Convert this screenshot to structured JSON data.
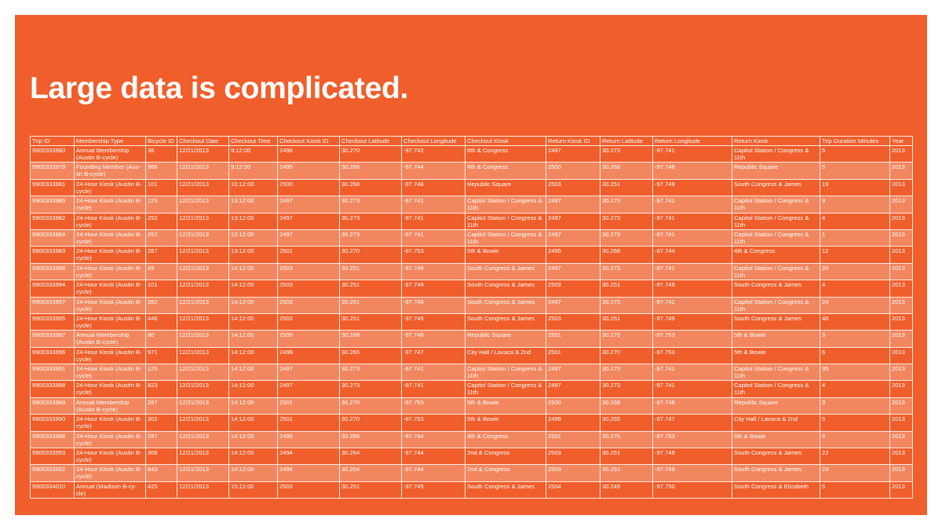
{
  "title": "Large data is complicated.",
  "table": {
    "headers": [
      "Trip ID",
      "Membership Type",
      "Bicycle ID",
      "Checkout Date",
      "Checkout Time",
      "Checkout Kiosk ID",
      "Checkout Latitude",
      "Checkout Longitude",
      "Checkout Kiosk",
      "Return Kiosk ID",
      "Return Latitude",
      "Return Longitude",
      "Return Kiosk",
      "Trip Duration Minutes",
      "Year"
    ],
    "rows": [
      [
        "9900333980",
        "Annual Membership (Austin B-cycle)",
        "36",
        "12/21/2013",
        "9:12:00",
        "2496",
        "30.270",
        "-97.742",
        "8th & Congress",
        "2497",
        "30.273",
        "-97.741",
        "Capitol Station / Congress & 11th",
        "5",
        "2013"
      ],
      [
        "9900333979",
        "Founding Member (Aus-tin B-cycle)",
        "966",
        "12/21/2013",
        "9:12:00",
        "2495",
        "30.266",
        "-97.744",
        "4th & Congress",
        "2500",
        "30.268",
        "-97.748",
        "Republic Square",
        "5",
        "2013"
      ],
      [
        "9900333981",
        "24-Hour Kiosk (Austin B-cycle)",
        "101",
        "12/21/2013",
        "10:12:00",
        "2500",
        "30.268",
        "-97.748",
        "Republic Square",
        "2503",
        "30.251",
        "-97.749",
        "South Congress & James",
        "19",
        "2013"
      ],
      [
        "9900333985",
        "24-Hour Kiosk (Austin B-cycle)",
        "125",
        "12/21/2013",
        "13:12:00",
        "2497",
        "30.273",
        "-97.741",
        "Capitol Station / Congress & 11th",
        "2497",
        "30.273",
        "-97.741",
        "Capitol Station / Congress & 11th",
        "9",
        "2013"
      ],
      [
        "9900333982",
        "24-Hour Kiosk (Austin B-cycle)",
        "252",
        "12/21/2013",
        "13:12:00",
        "2497",
        "30.273",
        "-97.741",
        "Capitol Station / Congress & 11th",
        "2497",
        "30.273",
        "-97.741",
        "Capitol Station / Congress & 11th",
        "4",
        "2013"
      ],
      [
        "9900333984",
        "24-Hour Kiosk (Austin B-cycle)",
        "252",
        "12/21/2013",
        "13:12:00",
        "2497",
        "30.273",
        "-97.741",
        "Capitol Station / Congress & 11th",
        "2497",
        "30.273",
        "-97.741",
        "Capitol Station / Congress & 11th",
        "1",
        "2013"
      ],
      [
        "9900333983",
        "24-Hour Kiosk (Austin B-cycle)",
        "287",
        "12/21/2013",
        "13:12:00",
        "2501",
        "30.270",
        "-97.753",
        "5th & Bowie",
        "2495",
        "30.266",
        "-97.744",
        "4th & Congress",
        "12",
        "2013"
      ],
      [
        "9900333998",
        "24-Hour Kiosk (Austin B-cycle)",
        "49",
        "12/21/2013",
        "14:12:00",
        "2503",
        "30.251",
        "-97.749",
        "South Congress & James",
        "2497",
        "30.273",
        "-97.741",
        "Capitol Station / Congress & 11th",
        "20",
        "2013"
      ],
      [
        "9900333994",
        "24-Hour Kiosk (Austin B-cycle)",
        "101",
        "12/21/2013",
        "14:12:00",
        "2503",
        "30.251",
        "-97.749",
        "South Congress & James",
        "2503",
        "30.251",
        "-97.749",
        "South Congress & James",
        "4",
        "2013"
      ],
      [
        "9900333997",
        "24-Hour Kiosk (Austin B-cycle)",
        "282",
        "12/21/2013",
        "14:12:00",
        "2503",
        "30.251",
        "-97.749",
        "South Congress & James",
        "2497",
        "30.273",
        "-97.741",
        "Capitol Station / Congress & 11th",
        "24",
        "2013"
      ],
      [
        "9900333995",
        "24-Hour Kiosk (Austin B-cycle)",
        "446",
        "12/21/2013",
        "14:12:00",
        "2503",
        "30.251",
        "-97.749",
        "South Congress & James",
        "2503",
        "30.251",
        "-97.749",
        "South Congress & James",
        "48",
        "2013"
      ],
      [
        "9900333987",
        "Annual Membership (Austin B-cycle)",
        "80",
        "12/21/2013",
        "14:12:00",
        "2500",
        "30.268",
        "-97.748",
        "Republic Square",
        "2501",
        "30.270",
        "-97.753",
        "5th & Bowie",
        "3",
        "2013"
      ],
      [
        "9900333996",
        "24-Hour Kiosk (Austin B-cycle)",
        "971",
        "12/21/2013",
        "14:12:00",
        "2499",
        "30.265",
        "-97.747",
        "City Hall / Lavaca & 2nd",
        "2501",
        "30.270",
        "-97.753",
        "5th & Bowie",
        "6",
        "2013"
      ],
      [
        "9900333991",
        "24-Hour Kiosk (Austin B-cycle)",
        "125",
        "12/21/2013",
        "14:12:00",
        "2497",
        "30.273",
        "-97.741",
        "Capitol Station / Congress & 11th",
        "2497",
        "30.273",
        "-97.741",
        "Capitol Station / Congress & 11th",
        "35",
        "2013"
      ],
      [
        "9900333988",
        "24-Hour Kiosk (Austin B-cycle)",
        "823",
        "12/21/2013",
        "14:12:00",
        "2497",
        "30.273",
        "-97.741",
        "Capitol Station / Congress & 11th",
        "2497",
        "30.273",
        "-97.741",
        "Capitol Station / Congress & 11th",
        "4",
        "2013"
      ],
      [
        "9900333989",
        "Annual Membership (Austin B-cycle)",
        "287",
        "12/21/2013",
        "14:12:00",
        "2501",
        "30.270",
        "-97.753",
        "5th & Bowie",
        "2500",
        "30.268",
        "-97.748",
        "Republic Square",
        "3",
        "2013"
      ],
      [
        "9900333990",
        "24-Hour Kiosk (Austin B-cycle)",
        "302",
        "12/21/2013",
        "14:12:00",
        "2501",
        "30.270",
        "-97.753",
        "5th & Bowie",
        "2499",
        "30.265",
        "-97.747",
        "City Hall / Lavaca & 2nd",
        "5",
        "2013"
      ],
      [
        "9900333986",
        "24-Hour Kiosk (Austin B-cycle)",
        "287",
        "12/21/2013",
        "14:12:00",
        "2495",
        "30.266",
        "-97.744",
        "4th & Congress",
        "2501",
        "30.270",
        "-97.753",
        "5th & Bowie",
        "5",
        "2013"
      ],
      [
        "9900333993",
        "24-Hour Kiosk (Austin B-cycle)",
        "306",
        "12/21/2013",
        "14:12:00",
        "2494",
        "30.264",
        "-97.744",
        "2nd & Congress",
        "2503",
        "30.251",
        "-97.749",
        "South Congress & James",
        "22",
        "2013"
      ],
      [
        "9900333992",
        "24-Hour Kiosk (Austin B-cycle)",
        "843",
        "12/21/2013",
        "14:12:00",
        "2494",
        "30.264",
        "-97.744",
        "2nd & Congress",
        "2503",
        "30.251",
        "-97.749",
        "South Congress & James",
        "23",
        "2013"
      ],
      [
        "9900334010",
        "Annual (Madison B-cy-cle)",
        "425",
        "12/21/2013",
        "15:12:00",
        "2503",
        "30.251",
        "-97.749",
        "South Congress & James",
        "2504",
        "30.249",
        "-97.750",
        "South Congress & Elizabeth",
        "5",
        "2013"
      ]
    ]
  },
  "colors": {
    "background": "#f05e2b",
    "row_alt": "#f2875f",
    "text": "#ffffff"
  }
}
